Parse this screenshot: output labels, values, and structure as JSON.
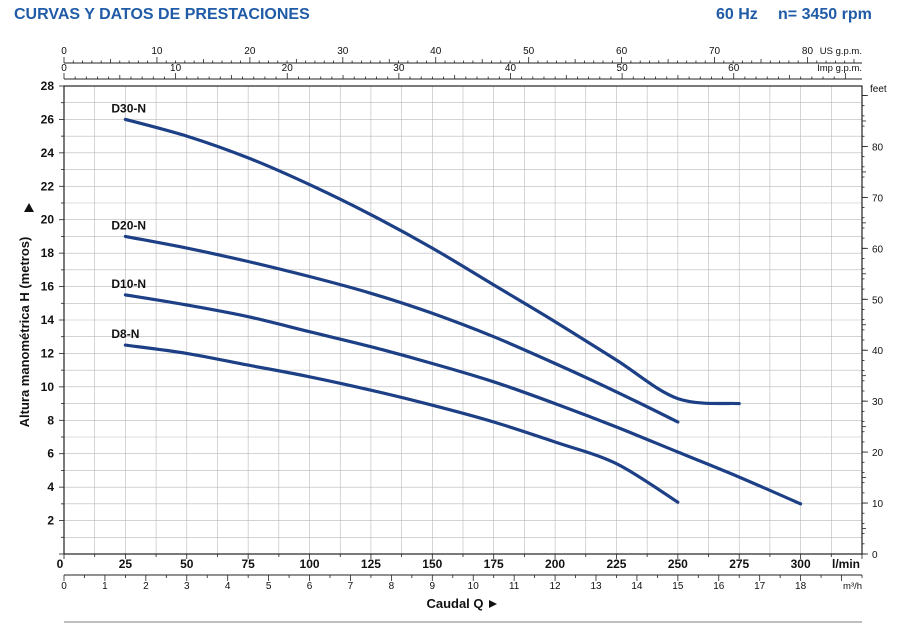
{
  "header": {
    "title": "CURVAS Y DATOS DE PRESTACIONES",
    "frequency": "60 Hz",
    "speed": "n= 3450 rpm"
  },
  "chart_data": {
    "type": "line",
    "xlabel": "Caudal Q",
    "ylabel": "Altura manométrica H (metros)",
    "xlim": [
      0,
      325
    ],
    "ylim": [
      0,
      28
    ],
    "grid": true,
    "x_unit": "l/min",
    "x_ticks": [
      0,
      25,
      50,
      75,
      100,
      125,
      150,
      175,
      200,
      225,
      250,
      275,
      300
    ],
    "y_ticks": [
      2,
      4,
      6,
      8,
      10,
      12,
      14,
      16,
      18,
      20,
      22,
      24,
      26,
      28
    ],
    "y_zero_label": "0",
    "alt_axes": {
      "us_gpm": {
        "unit": "US g.p.m.",
        "ticks": [
          0,
          10,
          20,
          30,
          40,
          50,
          60,
          70,
          80
        ]
      },
      "imp_gpm": {
        "unit": "Imp g.p.m.",
        "ticks": [
          0,
          10,
          20,
          30,
          40,
          50,
          60
        ]
      },
      "feet": {
        "unit": "feet",
        "ticks": [
          0,
          10,
          20,
          30,
          40,
          50,
          60,
          70,
          80
        ]
      },
      "m3h": {
        "unit": "m³/h",
        "ticks": [
          0,
          1,
          2,
          3,
          4,
          5,
          6,
          7,
          8,
          9,
          10,
          11,
          12,
          13,
          14,
          15,
          16,
          17,
          18
        ]
      }
    },
    "series": [
      {
        "name": "D30-N",
        "x": [
          25,
          50,
          75,
          100,
          125,
          150,
          175,
          200,
          225,
          250,
          275
        ],
        "y": [
          26.0,
          25.0,
          23.7,
          22.1,
          20.3,
          18.3,
          16.1,
          13.9,
          11.6,
          9.3,
          7.0
        ],
        "end": [
          275,
          9.0
        ]
      },
      {
        "name": "D20-N",
        "x": [
          25,
          50,
          75,
          100,
          125,
          150,
          175,
          200,
          225,
          250
        ],
        "y": [
          19.0,
          18.3,
          17.5,
          16.6,
          15.6,
          14.4,
          13.0,
          11.4,
          9.7,
          7.9
        ]
      },
      {
        "name": "D10-N",
        "x": [
          25,
          50,
          75,
          100,
          125,
          150,
          175,
          200,
          225,
          250,
          275,
          300
        ],
        "y": [
          15.5,
          14.9,
          14.2,
          13.3,
          12.4,
          11.4,
          10.3,
          9.0,
          7.6,
          6.1,
          4.6,
          3.0
        ]
      },
      {
        "name": "D8-N",
        "x": [
          25,
          50,
          75,
          100,
          125,
          150,
          175,
          200,
          225,
          250
        ],
        "y": [
          12.5,
          12.0,
          11.3,
          10.6,
          9.8,
          8.9,
          7.9,
          6.7,
          5.4,
          3.1
        ]
      }
    ]
  }
}
